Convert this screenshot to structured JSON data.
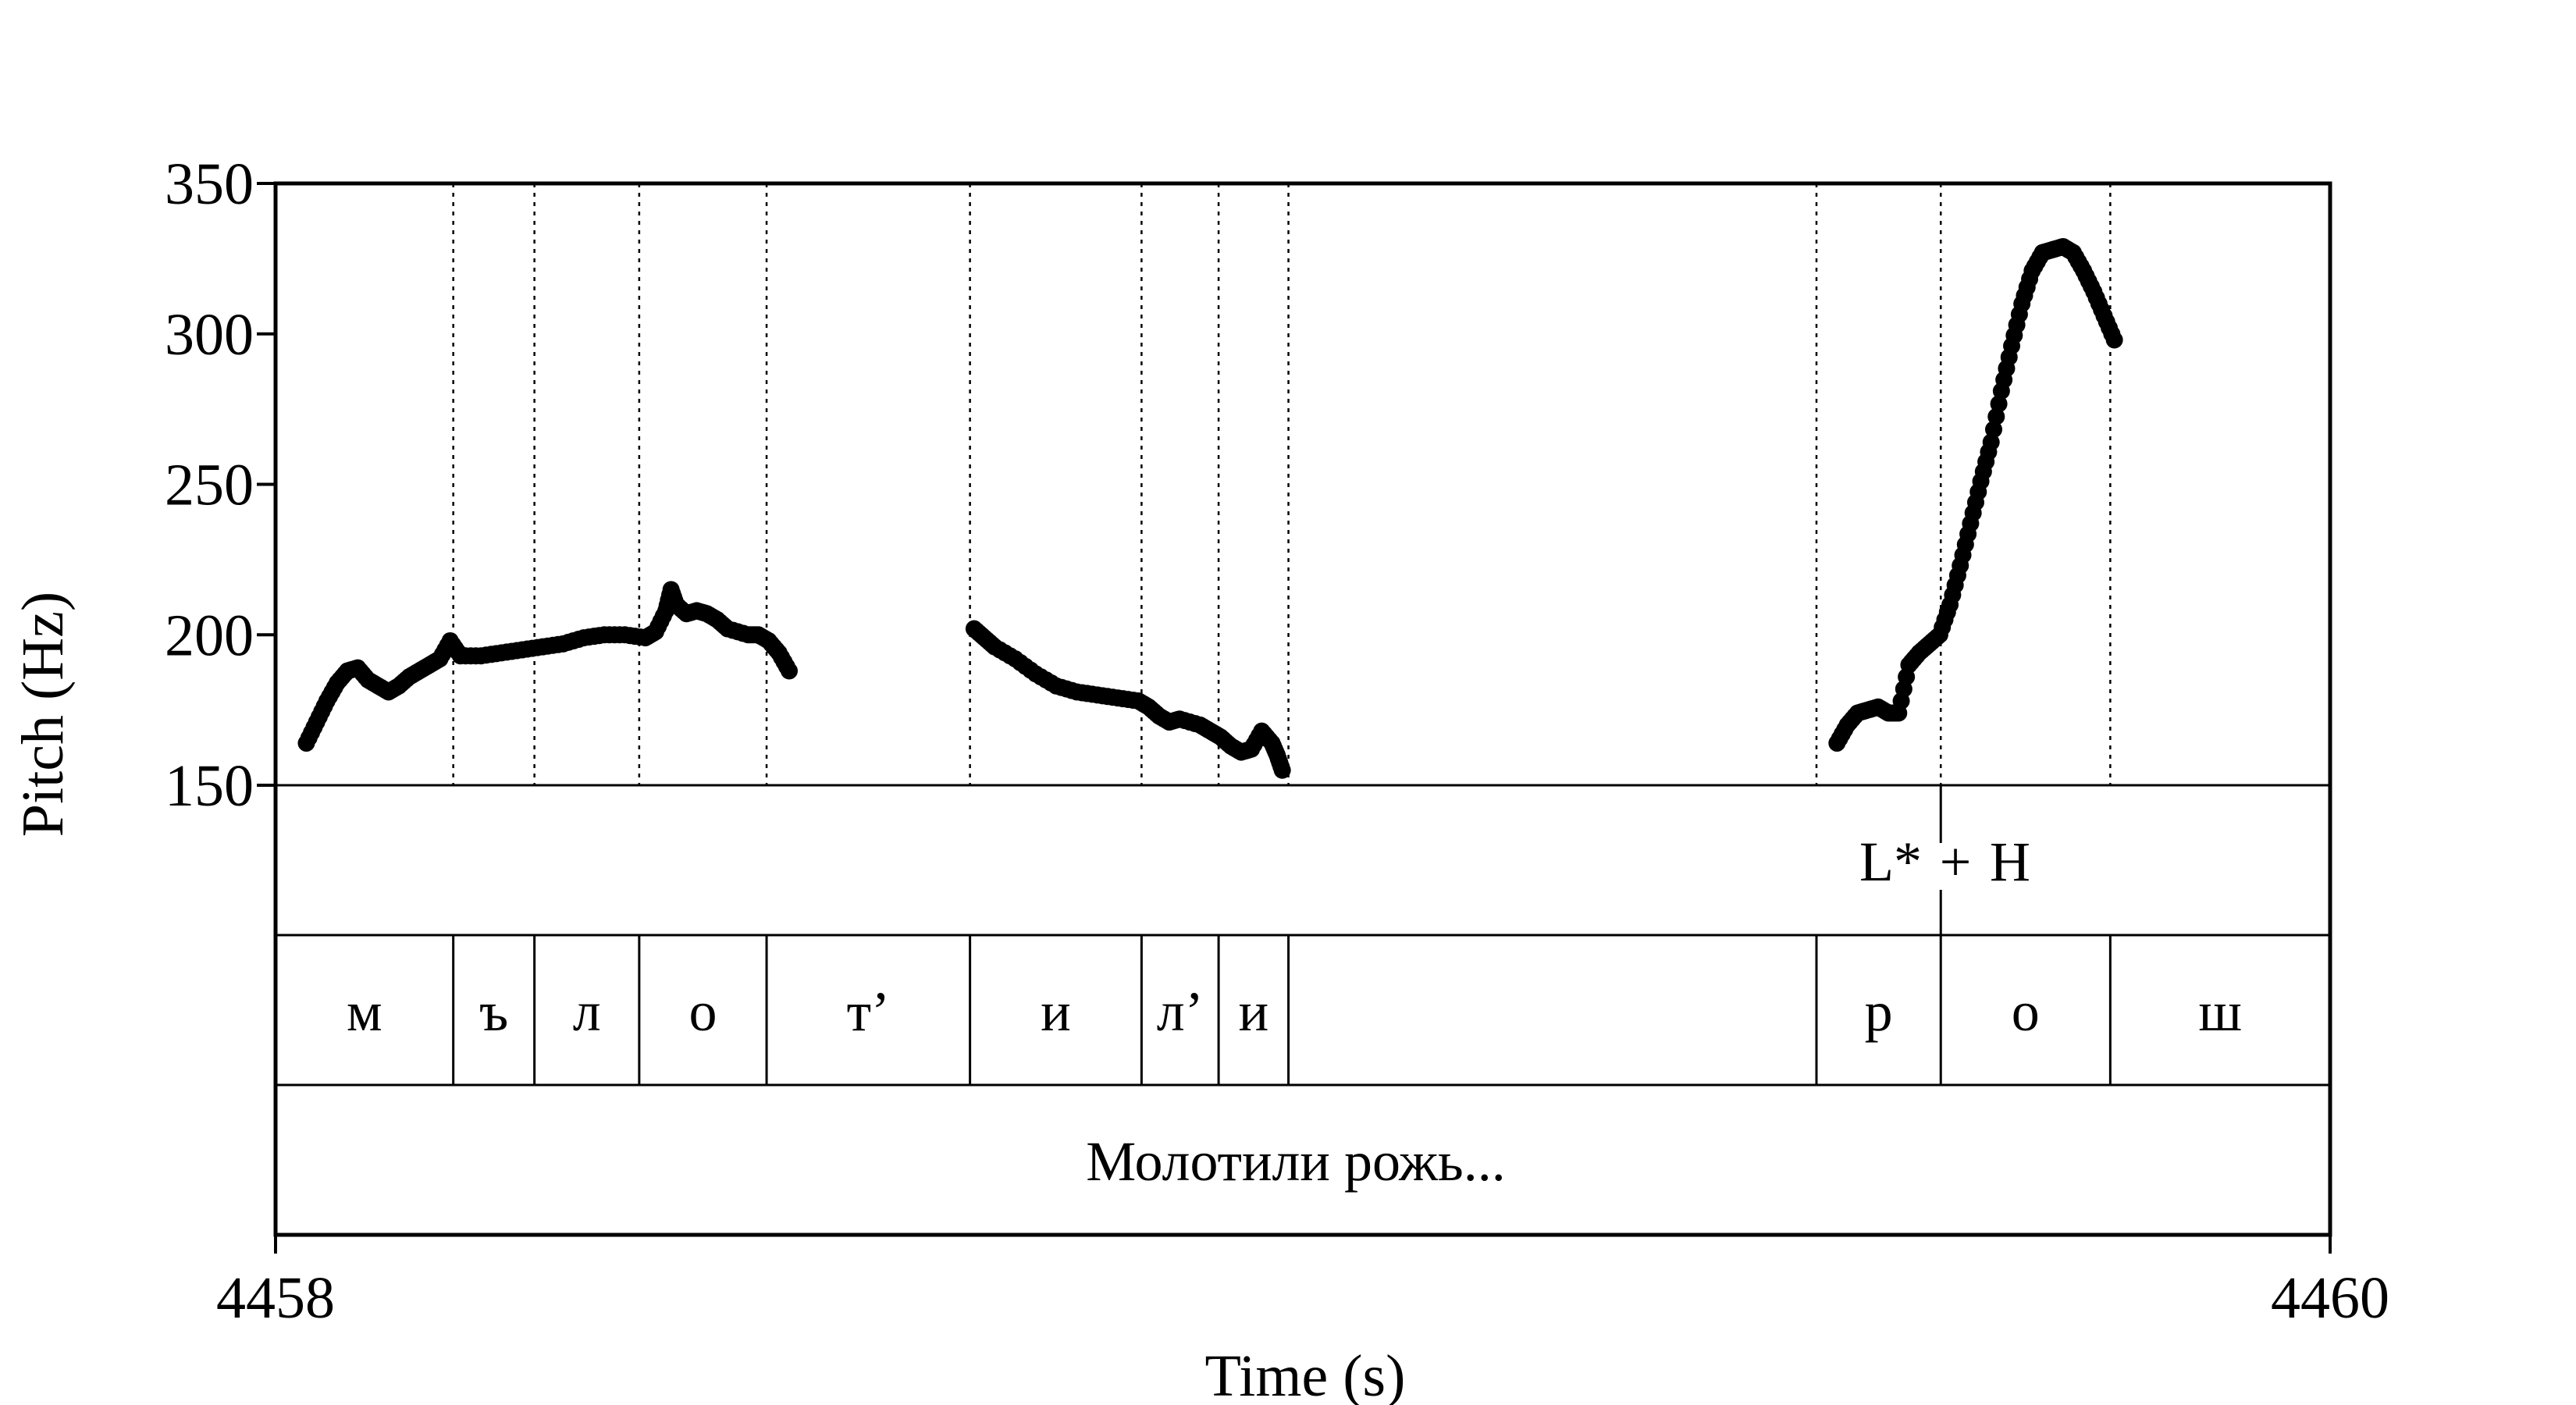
{
  "chart_data": {
    "type": "scatter",
    "title": "",
    "xlabel": "Time (s)",
    "ylabel": "Pitch (Hz)",
    "xlim": [
      4458,
      4460
    ],
    "ylim": [
      150,
      350
    ],
    "xticks": [
      "4458",
      "4460"
    ],
    "yticks": [
      "150",
      "200",
      "250",
      "300",
      "350"
    ],
    "grid": false,
    "series": [
      {
        "marker_color": "#000000",
        "points": [
          [
            4458.03,
            164
          ],
          [
            4458.04,
            171
          ],
          [
            4458.05,
            178
          ],
          [
            4458.06,
            184
          ],
          [
            4458.07,
            188
          ],
          [
            4458.08,
            189
          ],
          [
            4458.09,
            185
          ],
          [
            4458.1,
            183
          ],
          [
            4458.11,
            181
          ],
          [
            4458.12,
            183
          ],
          [
            4458.13,
            186
          ],
          [
            4458.14,
            188
          ],
          [
            4458.15,
            190
          ],
          [
            4458.16,
            192
          ],
          [
            4458.17,
            198
          ],
          [
            4458.18,
            193
          ],
          [
            4458.2,
            193
          ],
          [
            4458.22,
            194
          ],
          [
            4458.24,
            195
          ],
          [
            4458.26,
            196
          ],
          [
            4458.28,
            197
          ],
          [
            4458.3,
            199
          ],
          [
            4458.32,
            200
          ],
          [
            4458.34,
            200
          ],
          [
            4458.36,
            199
          ],
          [
            4458.37,
            201
          ],
          [
            4458.38,
            208
          ],
          [
            4458.385,
            215
          ],
          [
            4458.39,
            210
          ],
          [
            4458.4,
            207
          ],
          [
            4458.41,
            208
          ],
          [
            4458.42,
            207
          ],
          [
            4458.43,
            205
          ],
          [
            4458.44,
            202
          ],
          [
            4458.46,
            200
          ],
          [
            4458.47,
            200
          ],
          [
            4458.48,
            198
          ],
          [
            4458.49,
            194
          ],
          [
            4458.5,
            188
          ],
          [
            4458.68,
            202
          ],
          [
            4458.69,
            199
          ],
          [
            4458.7,
            196
          ],
          [
            4458.72,
            192
          ],
          [
            4458.74,
            187
          ],
          [
            4458.76,
            183
          ],
          [
            4458.78,
            181
          ],
          [
            4458.8,
            180
          ],
          [
            4458.82,
            179
          ],
          [
            4458.84,
            178
          ],
          [
            4458.85,
            176
          ],
          [
            4458.86,
            173
          ],
          [
            4458.87,
            171
          ],
          [
            4458.88,
            172
          ],
          [
            4458.9,
            170
          ],
          [
            4458.91,
            168
          ],
          [
            4458.92,
            166
          ],
          [
            4458.93,
            163
          ],
          [
            4458.94,
            161
          ],
          [
            4458.95,
            162
          ],
          [
            4458.96,
            168
          ],
          [
            4458.97,
            164
          ],
          [
            4458.975,
            160
          ],
          [
            4458.98,
            155
          ],
          [
            4459.52,
            164
          ],
          [
            4459.53,
            170
          ],
          [
            4459.54,
            174
          ],
          [
            4459.55,
            175
          ],
          [
            4459.56,
            176
          ],
          [
            4459.57,
            174
          ],
          [
            4459.58,
            174
          ],
          [
            4459.59,
            190
          ],
          [
            4459.6,
            194
          ],
          [
            4459.61,
            197
          ],
          [
            4459.62,
            200
          ],
          [
            4459.63,
            210
          ],
          [
            4459.64,
            223
          ],
          [
            4459.65,
            237
          ],
          [
            4459.66,
            251
          ],
          [
            4459.67,
            264
          ],
          [
            4459.68,
            281
          ],
          [
            4459.69,
            296
          ],
          [
            4459.7,
            310
          ],
          [
            4459.71,
            321
          ],
          [
            4459.72,
            327
          ],
          [
            4459.73,
            328
          ],
          [
            4459.74,
            329
          ],
          [
            4459.75,
            327
          ],
          [
            4459.76,
            321
          ],
          [
            4459.77,
            314
          ],
          [
            4459.78,
            306
          ],
          [
            4459.79,
            298
          ]
        ]
      }
    ],
    "boundaries": [
      4458.173,
      4458.252,
      4458.354,
      4458.478,
      4458.676,
      4458.843,
      4458.918,
      4458.986,
      4459.5,
      4459.621,
      4459.786
    ],
    "tiers": [
      {
        "name": "tones",
        "labels": [
          "L*",
          "+",
          "H"
        ],
        "tick_time": 4459.621
      },
      {
        "name": "phones",
        "segments": [
          "м",
          "ъ",
          "л",
          "о",
          "т’",
          "и",
          "л’",
          "и",
          "",
          "р",
          "о",
          "ш"
        ]
      },
      {
        "name": "utterance",
        "text": "Молотили рожь..."
      }
    ]
  }
}
